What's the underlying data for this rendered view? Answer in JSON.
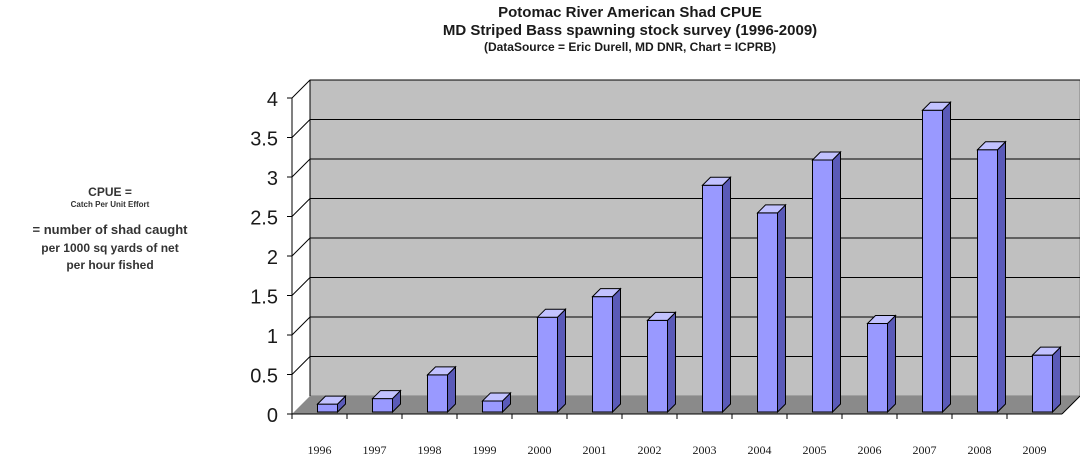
{
  "chart_data": {
    "type": "bar",
    "title": "Potomac River American Shad CPUE",
    "subtitle": "MD  Striped Bass spawning stock survey (1996-2009)",
    "source_note": "(DataSource = Eric Durell, MD DNR, Chart = ICPRB)",
    "ylabel_lines": [
      "CPUE =",
      "Catch Per Unit Effort",
      "= number of shad caught",
      "per 1000 sq yards of net",
      "per hour fished"
    ],
    "xlabel": "",
    "categories": [
      "1996",
      "1997",
      "1998",
      "1999",
      "2000",
      "2001",
      "2002",
      "2003",
      "2004",
      "2005",
      "2006",
      "2007",
      "2008",
      "2009"
    ],
    "values": [
      0.1,
      0.17,
      0.47,
      0.14,
      1.2,
      1.46,
      1.16,
      2.87,
      2.52,
      3.19,
      1.12,
      3.82,
      3.32,
      0.72
    ],
    "ylim": [
      0,
      4
    ],
    "yticks": [
      "0",
      "0.5",
      "1",
      "1.5",
      "2",
      "2.5",
      "3",
      "3.5",
      "4"
    ],
    "grid": true,
    "style": "3d",
    "colors": {
      "bar_front": "#9999ff",
      "bar_side": "#5a5ab8",
      "bar_top": "#c2c2ff",
      "wall": "#c0c0c0",
      "floor": "#8a8a8a",
      "grid": "#000000"
    }
  }
}
